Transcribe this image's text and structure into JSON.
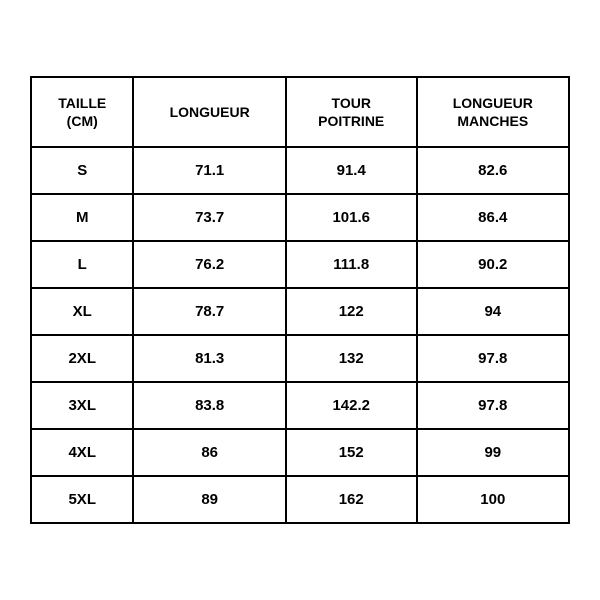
{
  "table": {
    "type": "table",
    "columns": [
      {
        "label_line1": "TAILLE",
        "label_line2": "(CM)"
      },
      {
        "label_line1": "LONGUEUR",
        "label_line2": ""
      },
      {
        "label_line1": "TOUR",
        "label_line2": "POITRINE"
      },
      {
        "label_line1": "LONGUEUR",
        "label_line2": "MANCHES"
      }
    ],
    "rows": [
      {
        "size": "S",
        "length": "71.1",
        "chest": "91.4",
        "sleeve": "82.6"
      },
      {
        "size": "M",
        "length": "73.7",
        "chest": "101.6",
        "sleeve": "86.4"
      },
      {
        "size": "L",
        "length": "76.2",
        "chest": "111.8",
        "sleeve": "90.2"
      },
      {
        "size": "XL",
        "length": "78.7",
        "chest": "122",
        "sleeve": "94"
      },
      {
        "size": "2XL",
        "length": "81.3",
        "chest": "132",
        "sleeve": "97.8"
      },
      {
        "size": "3XL",
        "length": "83.8",
        "chest": "142.2",
        "sleeve": "97.8"
      },
      {
        "size": "4XL",
        "length": "86",
        "chest": "152",
        "sleeve": "99"
      },
      {
        "size": "5XL",
        "length": "89",
        "chest": "162",
        "sleeve": "100"
      }
    ],
    "border_color": "#000000",
    "background_color": "#ffffff",
    "text_color": "#000000",
    "header_fontsize": 14,
    "cell_fontsize": 15,
    "font_weight": 700
  }
}
